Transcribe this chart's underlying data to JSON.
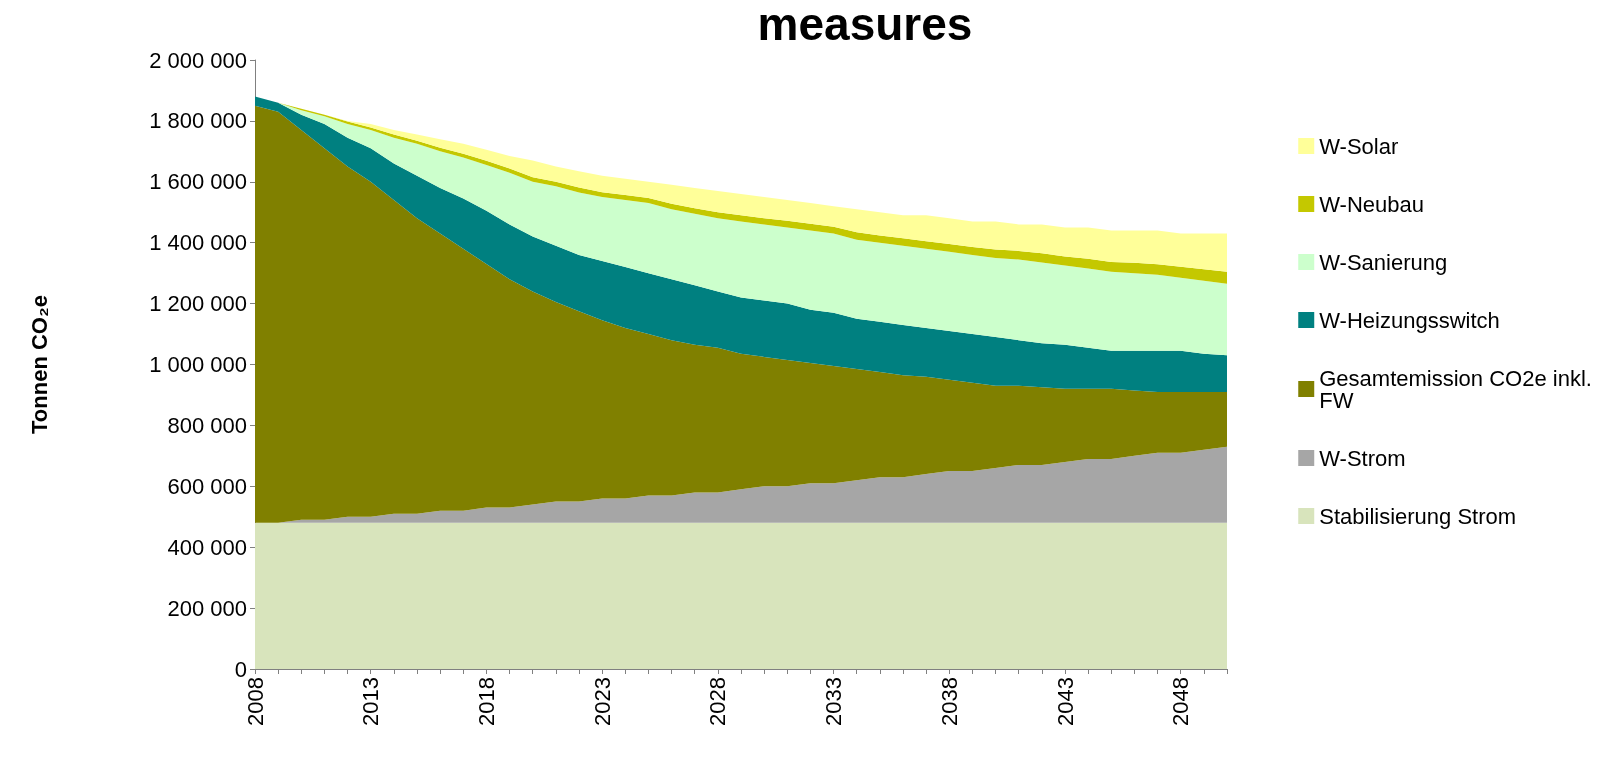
{
  "chart_data": {
    "type": "area",
    "title": "measures",
    "ylabel": "Tonnen CO₂e",
    "stacked": true,
    "grid": false,
    "legend": "right",
    "marker": "none",
    "categories": [
      "2008",
      null,
      null,
      null,
      null,
      "2013",
      null,
      null,
      null,
      null,
      "2018",
      null,
      null,
      null,
      null,
      "2023",
      null,
      null,
      null,
      null,
      "2028",
      null,
      null,
      null,
      null,
      "2033",
      null,
      null,
      null,
      null,
      "2038",
      null,
      null,
      null,
      null,
      "2043",
      null,
      null,
      null,
      null,
      "2048",
      null,
      null
    ],
    "ylim": [
      0,
      2000000
    ],
    "yticks": [
      {
        "value": 0,
        "label": "0"
      },
      {
        "value": 200000,
        "label": "200 000"
      },
      {
        "value": 400000,
        "label": "400 000"
      },
      {
        "value": 600000,
        "label": "600 000"
      },
      {
        "value": 800000,
        "label": "800 000"
      },
      {
        "value": 1000000,
        "label": "1 000 000"
      },
      {
        "value": 1200000,
        "label": "1 200 000"
      },
      {
        "value": 1400000,
        "label": "1 400 000"
      },
      {
        "value": 1600000,
        "label": "1 600 000"
      },
      {
        "value": 1800000,
        "label": "1 800 000"
      },
      {
        "value": 2000000,
        "label": "2 000 000"
      }
    ],
    "series": [
      {
        "name": "Stabilisierung Strom",
        "color": "#d8e4bc",
        "values": [
          480000,
          480000,
          480000,
          480000,
          480000,
          480000,
          480000,
          480000,
          480000,
          480000,
          480000,
          480000,
          480000,
          480000,
          480000,
          480000,
          480000,
          480000,
          480000,
          480000,
          480000,
          480000,
          480000,
          480000,
          480000,
          480000,
          480000,
          480000,
          480000,
          480000,
          480000,
          480000,
          480000,
          480000,
          480000,
          480000,
          480000,
          480000,
          480000,
          480000,
          480000,
          480000,
          480000
        ]
      },
      {
        "name": "W-Strom",
        "color": "#a6a6a6",
        "values": [
          0,
          0,
          10000,
          10000,
          20000,
          20000,
          30000,
          30000,
          40000,
          40000,
          50000,
          50000,
          60000,
          70000,
          70000,
          80000,
          80000,
          90000,
          90000,
          100000,
          100000,
          110000,
          120000,
          120000,
          130000,
          130000,
          140000,
          150000,
          150000,
          160000,
          170000,
          170000,
          180000,
          190000,
          190000,
          200000,
          210000,
          210000,
          220000,
          230000,
          230000,
          240000,
          250000
        ]
      },
      {
        "name": "Gesamtemission CO2e inkl. FW",
        "color": "#808000",
        "values": [
          1370000,
          1350000,
          1280000,
          1220000,
          1150000,
          1100000,
          1030000,
          970000,
          910000,
          860000,
          800000,
          750000,
          700000,
          655000,
          625000,
          585000,
          560000,
          530000,
          510000,
          485000,
          475000,
          445000,
          425000,
          415000,
          395000,
          385000,
          365000,
          345000,
          335000,
          320000,
          300000,
          290000,
          270000,
          260000,
          255000,
          240000,
          230000,
          230000,
          215000,
          200000,
          200000,
          190000,
          180000
        ]
      },
      {
        "name": "W-Heizungsswitch",
        "color": "#008080",
        "values": [
          30000,
          30000,
          50000,
          80000,
          95000,
          110000,
          120000,
          140000,
          150000,
          165000,
          175000,
          180000,
          180000,
          185000,
          185000,
          195000,
          200000,
          200000,
          200000,
          195000,
          185000,
          185000,
          185000,
          185000,
          175000,
          175000,
          165000,
          165000,
          165000,
          160000,
          160000,
          160000,
          160000,
          150000,
          145000,
          145000,
          135000,
          125000,
          130000,
          135000,
          135000,
          125000,
          120000
        ]
      },
      {
        "name": "W-Sanierung",
        "color": "#ccffcc",
        "values": [
          0,
          0,
          15000,
          25000,
          45000,
          60000,
          85000,
          105000,
          120000,
          135000,
          150000,
          170000,
          180000,
          195000,
          205000,
          210000,
          220000,
          230000,
          230000,
          235000,
          240000,
          250000,
          250000,
          250000,
          260000,
          260000,
          260000,
          260000,
          260000,
          260000,
          260000,
          260000,
          260000,
          265000,
          265000,
          260000,
          260000,
          260000,
          255000,
          250000,
          240000,
          240000,
          235000
        ]
      },
      {
        "name": "W-Neubau",
        "color": "#c4c800",
        "values": [
          0,
          0,
          5000,
          5000,
          8000,
          8000,
          10000,
          10000,
          12000,
          12000,
          14000,
          14000,
          15000,
          15000,
          16000,
          16000,
          17000,
          17000,
          18000,
          18000,
          20000,
          20000,
          20000,
          22000,
          22000,
          22000,
          24000,
          24000,
          25000,
          25000,
          26000,
          26000,
          28000,
          28000,
          30000,
          30000,
          32000,
          32000,
          34000,
          34000,
          36000,
          38000,
          40000
        ]
      },
      {
        "name": "W-Solar",
        "color": "#ffff99",
        "values": [
          0,
          0,
          0,
          0,
          2000,
          12000,
          15000,
          20000,
          28000,
          33000,
          36000,
          41000,
          55000,
          50000,
          54000,
          54000,
          53000,
          53000,
          62000,
          67000,
          70000,
          70000,
          70000,
          68000,
          68000,
          68000,
          76000,
          76000,
          75000,
          85000,
          84000,
          84000,
          92000,
          87000,
          95000,
          95000,
          103000,
          103000,
          106000,
          111000,
          109000,
          117000,
          125000
        ]
      }
    ]
  }
}
